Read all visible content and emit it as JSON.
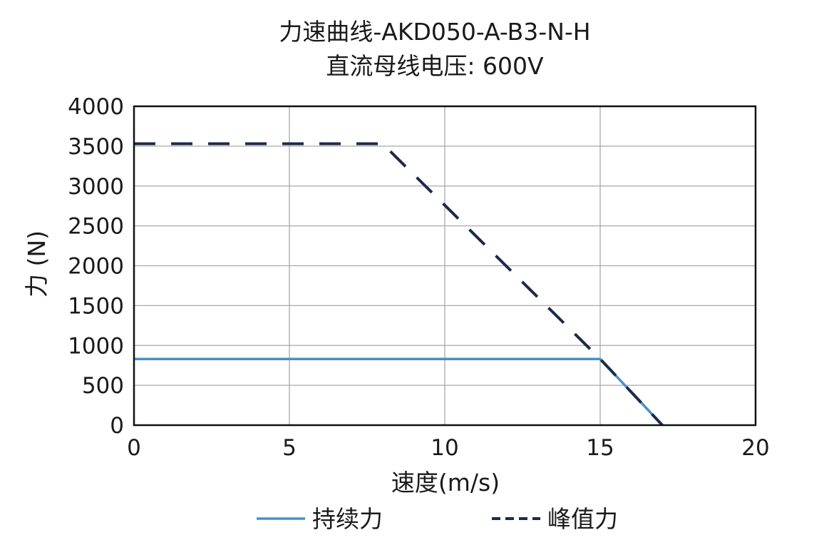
{
  "chart_data": {
    "type": "line",
    "title": "力速曲线-AKD050-A-B3-N-H",
    "subtitle": "直流母线电压: 600V",
    "xlabel": "速度(m/s)",
    "ylabel": "力 (N)",
    "xlim": [
      0,
      20
    ],
    "ylim": [
      0,
      4000
    ],
    "x_ticks": [
      0,
      5,
      10,
      15,
      20
    ],
    "y_ticks": [
      0,
      500,
      1000,
      1500,
      2000,
      2500,
      3000,
      3500,
      4000
    ],
    "x_tick_labels": [
      "0",
      "5",
      "10",
      "15",
      "20"
    ],
    "y_tick_labels": [
      "0",
      "500",
      "1000",
      "1500",
      "2000",
      "2500",
      "3000",
      "3500",
      "4000"
    ],
    "grid": true,
    "legend_position": "bottom",
    "series": [
      {
        "name": "持续力",
        "style": "solid",
        "color": "#4a90c8",
        "points": [
          [
            0,
            830
          ],
          [
            15,
            830
          ],
          [
            17,
            0
          ]
        ]
      },
      {
        "name": "峰值力",
        "style": "dashed",
        "color": "#1b2a4a",
        "points": [
          [
            0,
            3530
          ],
          [
            8,
            3530
          ],
          [
            15,
            830
          ],
          [
            17,
            0
          ]
        ]
      }
    ]
  }
}
